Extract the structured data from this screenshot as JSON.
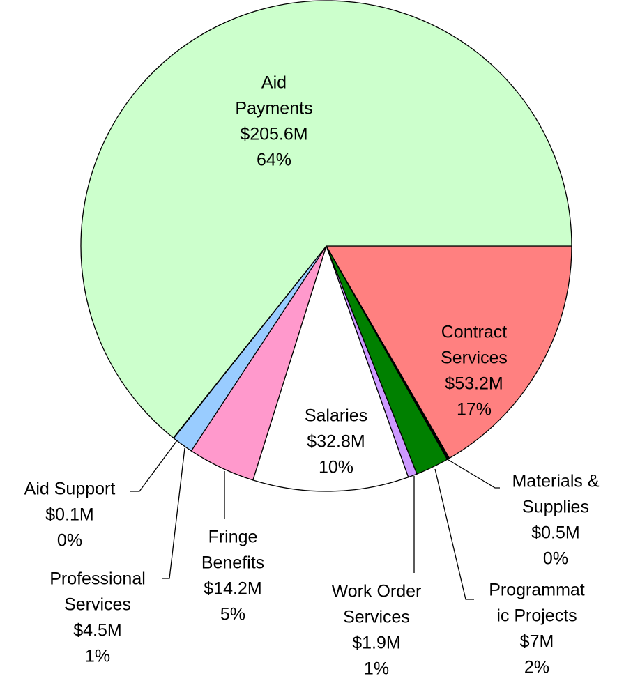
{
  "chart_data": {
    "type": "pie",
    "categories": [
      [
        "Contract",
        "Services"
      ],
      [
        "Materials &",
        "Supplies"
      ],
      [
        "Programmat",
        "ic Projects"
      ],
      [
        "Work Order",
        "Services"
      ],
      [
        "Salaries"
      ],
      [
        "Fringe",
        "Benefits"
      ],
      [
        "Professional",
        "Services"
      ],
      [
        "Aid Support"
      ],
      [
        "Aid",
        "Payments"
      ]
    ],
    "values": [
      53.2,
      0.5,
      7,
      1.9,
      32.8,
      14.2,
      4.5,
      0.1,
      205.6
    ],
    "value_labels": [
      "$53.2M",
      "$0.5M",
      "$7M",
      "$1.9M",
      "$32.8M",
      "$14.2M",
      "$4.5M",
      "$0.1M",
      "$205.6M"
    ],
    "percents": [
      17,
      0,
      2,
      1,
      10,
      5,
      1,
      0,
      64
    ],
    "percent_labels": [
      "17%",
      "0%",
      "2%",
      "1%",
      "10%",
      "5%",
      "1%",
      "0%",
      "64%"
    ],
    "colors": [
      "#ff8080",
      "#000000",
      "#008000",
      "#cc99ff",
      "#ffffff",
      "#ff99cc",
      "#99ccff",
      "#ccffcc",
      "#ccffcc"
    ]
  }
}
